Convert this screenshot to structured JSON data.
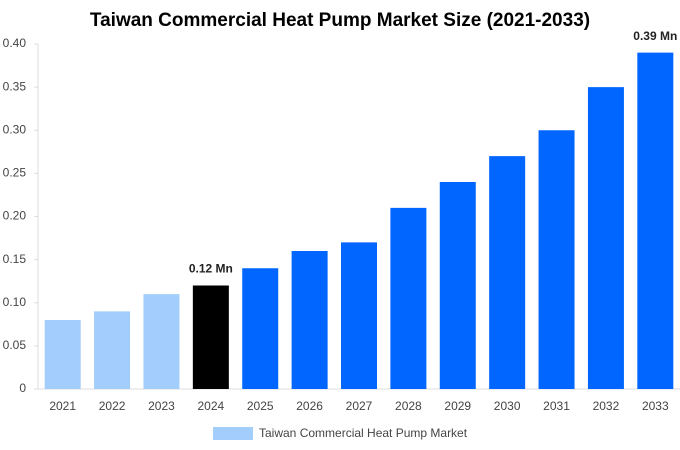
{
  "chart_data": {
    "type": "bar",
    "title": "Taiwan Commercial Heat Pump Market Size (2021-2033)",
    "categories": [
      "2021",
      "2022",
      "2023",
      "2024",
      "2025",
      "2026",
      "2027",
      "2028",
      "2029",
      "2030",
      "2031",
      "2032",
      "2033"
    ],
    "series": [
      {
        "name": "Taiwan Commercial Heat Pump Market",
        "color": "#a3cdfc",
        "values": [
          0.08,
          0.09,
          0.11,
          0.12,
          0.14,
          0.16,
          0.17,
          0.21,
          0.24,
          0.27,
          0.3,
          0.35,
          0.39
        ],
        "bar_colors": [
          "#a3cdfc",
          "#a3cdfc",
          "#a3cdfc",
          "#000000",
          "#0066ff",
          "#0066ff",
          "#0066ff",
          "#0066ff",
          "#0066ff",
          "#0066ff",
          "#0066ff",
          "#0066ff",
          "#0066ff"
        ],
        "value_labels": [
          null,
          null,
          null,
          "0.12 Mn",
          null,
          null,
          null,
          null,
          null,
          null,
          null,
          null,
          "0.39 Mn"
        ]
      }
    ],
    "ylim": [
      0,
      0.4
    ],
    "yticks": [
      0,
      0.05,
      {
        "value": 0.1,
        "label": "0.10"
      },
      0.15,
      {
        "value": 0.2,
        "label": "0.20"
      },
      0.25,
      {
        "value": 0.3,
        "label": "0.30"
      },
      0.35,
      {
        "value": 0.4,
        "label": "0.40"
      }
    ],
    "grid": false
  }
}
